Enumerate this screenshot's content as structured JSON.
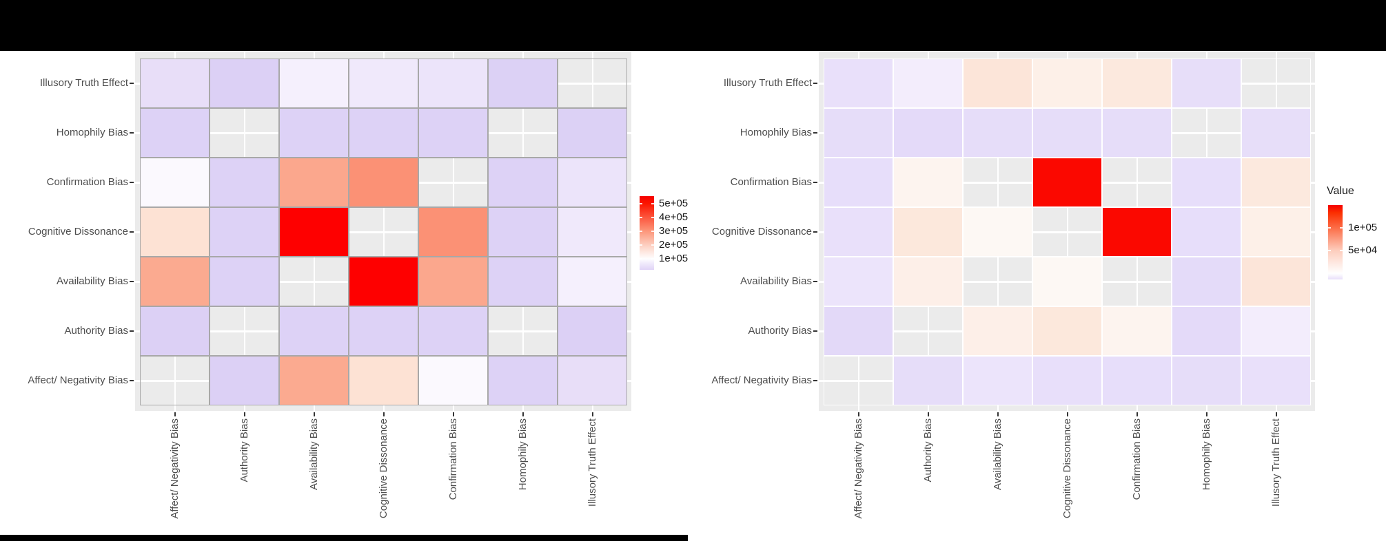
{
  "figure": {
    "description": "Two ggplot-style co-occurrence heatmaps of cognitive biases",
    "background": "#ffffff",
    "na_cell_color": "#ebebeb"
  },
  "chart_data": [
    {
      "type": "heatmap",
      "position": "left",
      "title": "",
      "xlabel": "",
      "ylabel": "",
      "x_categories": [
        "Affect/ Negativity Bias",
        "Authority Bias",
        "Availability Bias",
        "Cognitive Dissonance",
        "Confirmation Bias",
        "Homophily Bias",
        "Illusory Truth Effect"
      ],
      "y_categories_top_to_bottom": [
        "Illusory Truth Effect",
        "Homophily Bias",
        "Confirmation Bias",
        "Cognitive Dissonance",
        "Availability Bias",
        "Authority Bias",
        "Affect/ Negativity Bias"
      ],
      "legend": {
        "title": "",
        "tick_labels": [
          "5e+05",
          "4e+05",
          "3e+05",
          "2e+05",
          "1e+05"
        ],
        "high_color": "#ff0000",
        "mid_color": "#ffffff",
        "low_color": "#dfd3f7",
        "position": "right"
      },
      "value_range_est": [
        0,
        500000
      ],
      "grid": "white major gridlines at category centers",
      "cell_colors": [
        [
          "#e8def8",
          "#dcd0f5",
          "#f5f0fd",
          "#f0e9fb",
          "#ece4fa",
          "#dcd1f5",
          null
        ],
        [
          "#ddd2f6",
          null,
          "#ddd2f6",
          "#ddd2f6",
          "#ddd2f6",
          null,
          "#dcd1f5"
        ],
        [
          "#fbf9fe",
          "#ddd2f6",
          "#fba78d",
          "#fb9175",
          null,
          "#ddd2f6",
          "#ece4fa"
        ],
        [
          "#fde2d4",
          "#ddd2f6",
          "#fe0000",
          null,
          "#fb9175",
          "#ddd2f6",
          "#f0e9fb"
        ],
        [
          "#fbaa90",
          "#ddd2f6",
          null,
          "#fe0000",
          "#fba78d",
          "#ddd2f6",
          "#f5f0fd"
        ],
        [
          "#dcd0f5",
          null,
          "#ddd2f6",
          "#ddd2f6",
          "#ddd2f6",
          null,
          "#dcd0f5"
        ],
        [
          null,
          "#dcd0f5",
          "#fbaa90",
          "#fde2d4",
          "#fbf9fe",
          "#ddd2f6",
          "#e8def8"
        ]
      ],
      "est_values": [
        [
          50000,
          15000,
          85000,
          70000,
          62000,
          13000,
          null
        ],
        [
          18000,
          null,
          22000,
          22000,
          22000,
          null,
          22000
        ],
        [
          95000,
          22000,
          270000,
          310000,
          null,
          22000,
          62000
        ],
        [
          155000,
          22000,
          500000,
          null,
          310000,
          22000,
          70000
        ],
        [
          260000,
          22000,
          null,
          500000,
          270000,
          22000,
          85000
        ],
        [
          18000,
          null,
          22000,
          22000,
          22000,
          null,
          15000
        ],
        [
          null,
          18000,
          260000,
          155000,
          95000,
          22000,
          50000
        ]
      ]
    },
    {
      "type": "heatmap",
      "position": "right",
      "title": "",
      "xlabel": "",
      "ylabel": "",
      "x_categories": [
        "Affect/ Negativity Bias",
        "Authority Bias",
        "Availability Bias",
        "Cognitive Dissonance",
        "Confirmation Bias",
        "Homophily Bias",
        "Illusory Truth Effect"
      ],
      "y_categories_top_to_bottom": [
        "Illusory Truth Effect",
        "Homophily Bias",
        "Confirmation Bias",
        "Cognitive Dissonance",
        "Availability Bias",
        "Authority Bias",
        "Affect/ Negativity Bias"
      ],
      "legend": {
        "title": "Value",
        "tick_labels": [
          "1e+05",
          "5e+04"
        ],
        "high_color": "#ff0000",
        "mid_color": "#ffffff",
        "low_color": "#e8dffa",
        "position": "right"
      },
      "value_range_est": [
        0,
        140000
      ],
      "grid": "white major gridlines at category centers",
      "cell_colors": [
        [
          "#e9e0fa",
          "#f3edfc",
          "#fce5d9",
          "#fdf0e8",
          "#fce9de",
          "#e7def9",
          null
        ],
        [
          "#e6ddf9",
          "#e4daf9",
          "#e6ddf9",
          "#e6ddf9",
          "#e6ddf9",
          null,
          "#e7def9"
        ],
        [
          "#e7defa",
          "#fdf4ef",
          null,
          "#fb0800",
          null,
          "#e7defa",
          "#fce9de"
        ],
        [
          "#e9e0fa",
          "#fce8dc",
          "#fdf8f4",
          null,
          "#fb0800",
          "#e7defa",
          "#fdf0e8"
        ],
        [
          "#ece4fb",
          "#fdefe8",
          null,
          "#fdf8f4",
          null,
          "#e4dbf9",
          "#fce5d9"
        ],
        [
          "#e3d9f8",
          null,
          "#fdefe8",
          "#fce8dc",
          "#fdf4ef",
          "#e4daf9",
          "#f3edfc"
        ],
        [
          null,
          "#e6ddf9",
          "#ece4fb",
          "#e8dffa",
          "#e7defa",
          "#e6ddf9",
          "#e9e0fa"
        ]
      ],
      "est_values": [
        [
          6000,
          12000,
          60000,
          45000,
          55000,
          6000,
          null
        ],
        [
          4000,
          4500,
          4000,
          4000,
          4000,
          null,
          4000
        ],
        [
          5000,
          30000,
          null,
          140000,
          null,
          5000,
          55000
        ],
        [
          6000,
          55000,
          25000,
          null,
          140000,
          5000,
          45000
        ],
        [
          8000,
          42000,
          null,
          25000,
          null,
          3500,
          60000
        ],
        [
          3000,
          null,
          42000,
          55000,
          30000,
          3000,
          12000
        ],
        [
          null,
          4500,
          8000,
          5000,
          5000,
          5000,
          6000
        ]
      ]
    }
  ]
}
